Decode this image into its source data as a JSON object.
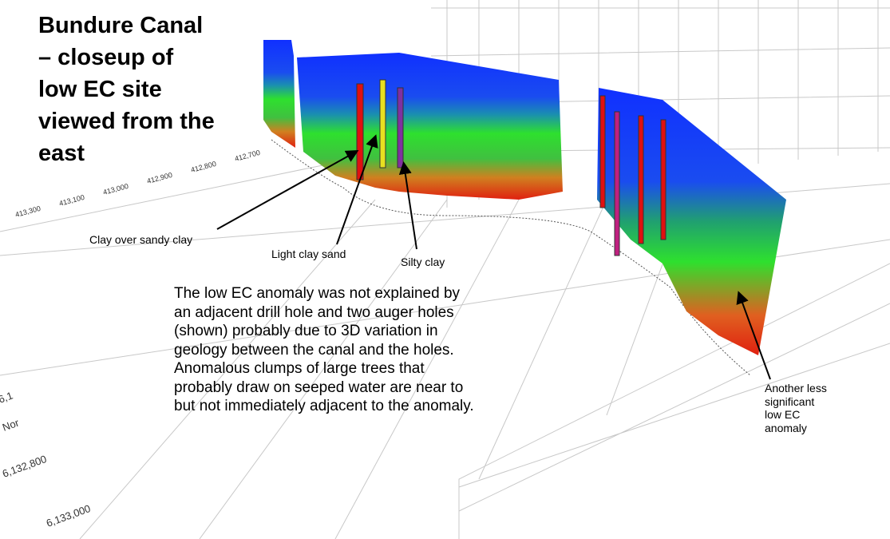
{
  "title": [
    "Bundure Canal",
    "– closeup of",
    "low EC site",
    "viewed from the",
    "east"
  ],
  "callouts": {
    "clay_over_sandy_clay": "Clay over sandy clay",
    "light_clay_sand": "Light clay sand",
    "silty_clay": "Silty clay",
    "another_anomaly": "Another less significant low EC anomaly"
  },
  "description": "The low EC anomaly was not explained by an adjacent drill hole and two auger holes (shown) probably due to 3D variation in geology between the canal and the holes. Anomalous clumps of large trees that probably draw on seeped water are near to but not immediately adjacent to the anomaly.",
  "easting_labels": [
    "413,300",
    "413,100",
    "413,000",
    "412,900",
    "412,800",
    "412,700"
  ],
  "northing_labels": [
    "6,1",
    "Nor",
    "6,132,800",
    "6,133,000"
  ]
}
